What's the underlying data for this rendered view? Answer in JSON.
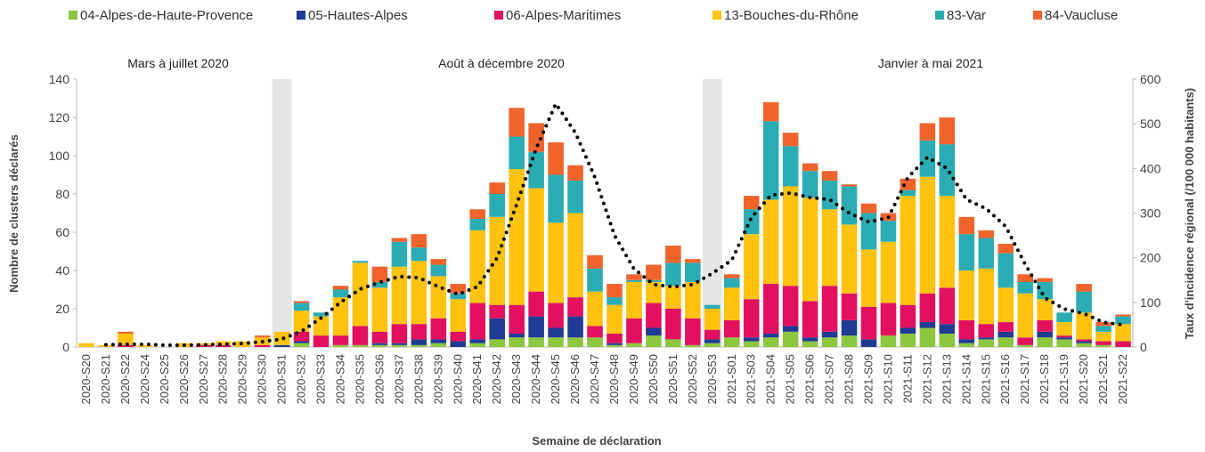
{
  "chart_data": {
    "type": "bar",
    "stacked": true,
    "x_label": "Semaine de déclaration",
    "y_label": "Nombre de clusters déclarés",
    "y2_label": "Taux d'incidence régional (/100 000 habitants)",
    "annotations": [
      "Mars à juillet 2020",
      "Août à décembre 2020",
      "Janvier à mai 2021"
    ],
    "categories": [
      "2020-S20",
      "2020-S21",
      "2020-S22",
      "2020-S24",
      "2020-S25",
      "2020-S26",
      "2020-S27",
      "2020-S28",
      "2020-S29",
      "2020-S30",
      "2020-S31",
      "2020-S32",
      "2020-S33",
      "2020-S34",
      "2020-S35",
      "2020-S36",
      "2020-S37",
      "2020-S38",
      "2020-S39",
      "2020-S40",
      "2020-S41",
      "2020-S42",
      "2020-S43",
      "2020-S44",
      "2020-S45",
      "2020-S46",
      "2020-S47",
      "2020-S48",
      "2020-S49",
      "2020-S50",
      "2020-S51",
      "2020-S52",
      "2020-S53",
      "2021-S01",
      "2021-S03",
      "2021-S04",
      "2021-S05",
      "2021-S06",
      "2021-S07",
      "2021-S08",
      "2021-S09",
      "2021-S10",
      "2021-S11",
      "2021-S12",
      "2021-S13",
      "2021-S14",
      "2021-S15",
      "2021-S16",
      "2021-S17",
      "2021-S18",
      "2021-S19",
      "2021-S20",
      "2021-S21",
      "2021-S22"
    ],
    "series": [
      {
        "name": "04-Alpes-de-Haute-Provence",
        "color": "#8dc63f",
        "values": [
          0,
          0,
          0,
          0,
          0,
          0,
          0,
          0,
          0,
          0,
          0,
          2,
          0,
          1,
          1,
          1,
          1,
          1,
          2,
          0,
          2,
          4,
          5,
          5,
          5,
          5,
          5,
          1,
          2,
          6,
          4,
          1,
          2,
          5,
          3,
          5,
          8,
          3,
          5,
          6,
          0,
          6,
          7,
          10,
          7,
          2,
          4,
          5,
          1,
          5,
          4,
          2,
          1,
          0
        ]
      },
      {
        "name": "05-Hautes-Alpes",
        "color": "#1f3b93",
        "values": [
          0,
          0,
          0,
          0,
          0,
          0,
          0,
          0,
          0,
          0,
          1,
          1,
          0,
          0,
          0,
          1,
          1,
          3,
          2,
          3,
          2,
          11,
          2,
          11,
          5,
          11,
          0,
          1,
          0,
          4,
          0,
          0,
          2,
          0,
          2,
          2,
          3,
          2,
          3,
          8,
          4,
          0,
          3,
          3,
          5,
          2,
          1,
          3,
          0,
          3,
          1,
          1,
          0,
          0
        ]
      },
      {
        "name": "06-Alpes-Maritimes",
        "color": "#e2105f",
        "values": [
          0,
          0,
          1,
          0,
          0,
          0,
          1,
          1,
          0,
          1,
          0,
          5,
          6,
          5,
          10,
          6,
          10,
          8,
          11,
          5,
          19,
          7,
          15,
          13,
          13,
          10,
          6,
          5,
          13,
          13,
          16,
          14,
          5,
          9,
          20,
          26,
          21,
          19,
          24,
          14,
          17,
          17,
          12,
          15,
          19,
          10,
          7,
          5,
          4,
          6,
          1,
          1,
          2,
          3
        ]
      },
      {
        "name": "13-Bouches-du-Rhône",
        "color": "#ffc20e",
        "values": [
          2,
          1,
          6,
          1,
          0,
          2,
          1,
          2,
          3,
          4,
          7,
          11,
          10,
          20,
          33,
          23,
          30,
          33,
          22,
          17,
          38,
          46,
          71,
          54,
          42,
          44,
          18,
          15,
          19,
          11,
          12,
          19,
          11,
          17,
          34,
          44,
          52,
          54,
          40,
          36,
          30,
          32,
          57,
          61,
          48,
          26,
          29,
          18,
          23,
          11,
          7,
          14,
          5,
          9
        ]
      },
      {
        "name": "83-Var",
        "color": "#2bacb3",
        "values": [
          0,
          0,
          0,
          0,
          0,
          0,
          0,
          0,
          0,
          0,
          0,
          4,
          2,
          4,
          1,
          3,
          13,
          7,
          6,
          3,
          6,
          12,
          17,
          19,
          25,
          17,
          12,
          4,
          1,
          1,
          12,
          10,
          2,
          5,
          13,
          41,
          21,
          14,
          15,
          20,
          19,
          11,
          3,
          19,
          27,
          19,
          16,
          18,
          6,
          9,
          5,
          11,
          3,
          4
        ]
      },
      {
        "name": "84-Vaucluse",
        "color": "#f0642b",
        "values": [
          0,
          0,
          1,
          0,
          0,
          0,
          0,
          0,
          0,
          1,
          0,
          1,
          0,
          2,
          0,
          8,
          2,
          7,
          3,
          5,
          5,
          6,
          15,
          15,
          17,
          8,
          7,
          7,
          3,
          8,
          9,
          2,
          0,
          2,
          7,
          10,
          7,
          4,
          5,
          1,
          5,
          4,
          6,
          9,
          14,
          9,
          4,
          5,
          4,
          2,
          0,
          4,
          2,
          1
        ]
      }
    ],
    "line": {
      "color": "#000000",
      "axis": "y2",
      "values": [
        null,
        5,
        6,
        6,
        4,
        4,
        5,
        6,
        8,
        12,
        18,
        35,
        65,
        100,
        130,
        145,
        158,
        155,
        135,
        118,
        135,
        200,
        320,
        445,
        545,
        480,
        380,
        250,
        175,
        140,
        135,
        140,
        165,
        195,
        290,
        340,
        345,
        335,
        330,
        300,
        280,
        290,
        380,
        425,
        400,
        330,
        310,
        270,
        185,
        110,
        85,
        75,
        55,
        50
      ]
    },
    "ylim": [
      0,
      140
    ],
    "yticks": [
      0,
      20,
      40,
      60,
      80,
      100,
      120,
      140
    ],
    "y2lim": [
      0,
      600
    ],
    "y2ticks": [
      0,
      100,
      200,
      300,
      400,
      500,
      600
    ],
    "grid": false,
    "legend": "top"
  }
}
